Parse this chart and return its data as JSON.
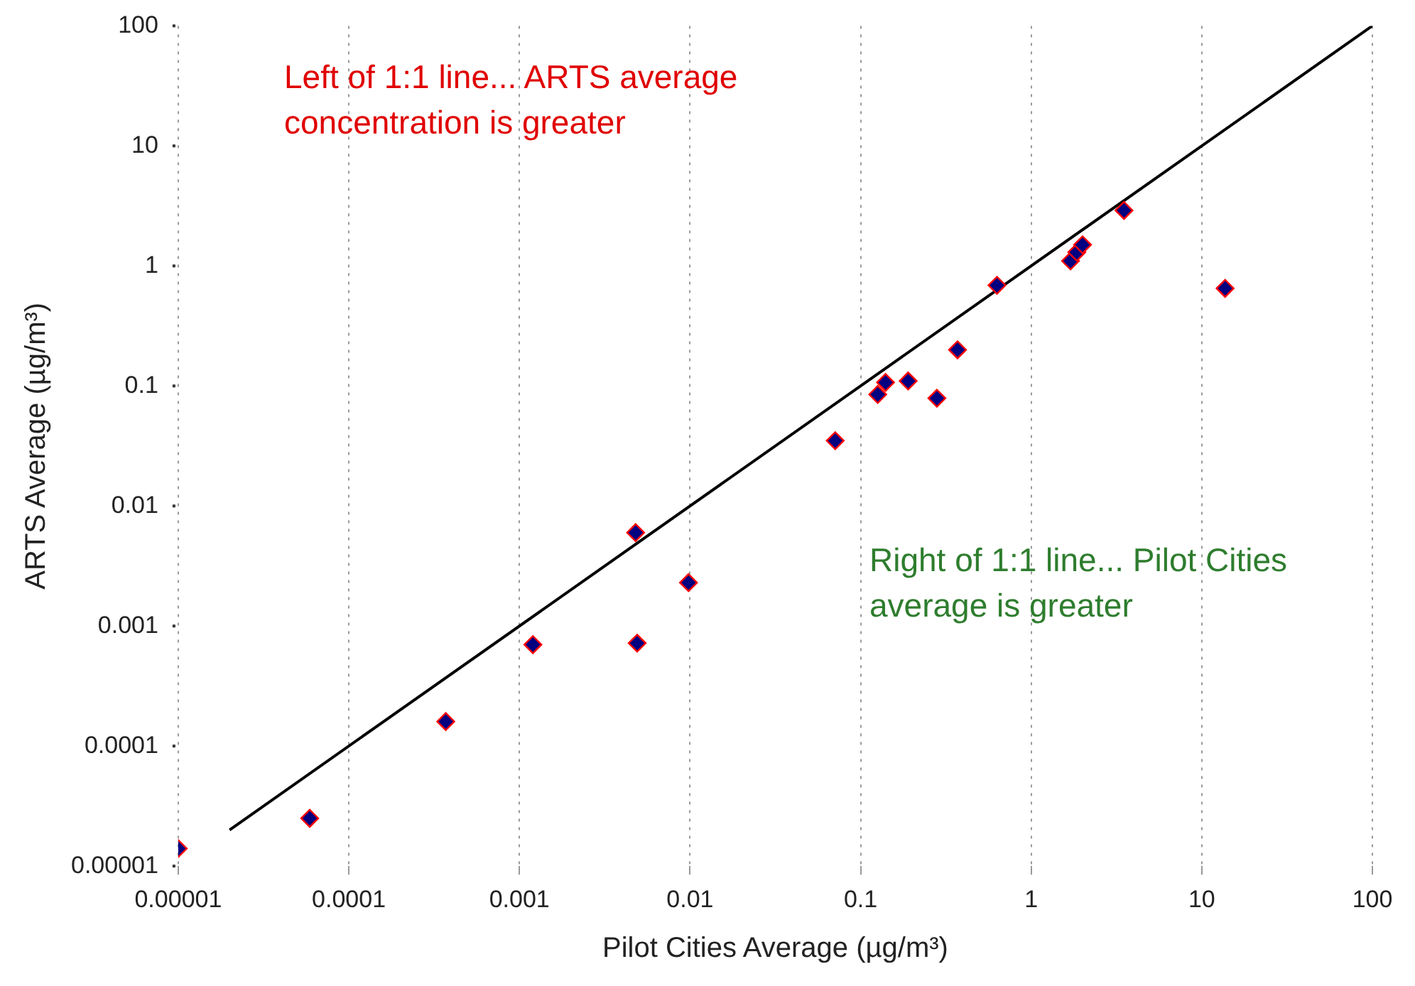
{
  "chart_data": {
    "type": "scatter",
    "xlabel": "Pilot Cities Average (µg/m³)",
    "ylabel": "ARTS Average (µg/m³)",
    "annotations": [
      "Left of 1:1 line... ARTS average concentration is greater",
      "Right of 1:1 line... Pilot Cities average is greater"
    ],
    "log": "xy",
    "xlim": [
      1e-05,
      100
    ],
    "ylim": [
      1e-05,
      100
    ],
    "xticks": [
      {
        "value": 1e-05,
        "label": "0.00001"
      },
      0.0001,
      0.001,
      0.01,
      0.1,
      1,
      10,
      100
    ],
    "yticks": [
      {
        "value": 1e-05,
        "label": "0.00001"
      },
      0.0001,
      0.001,
      0.01,
      0.1,
      1,
      10,
      100
    ],
    "grid": "x",
    "legend": false,
    "marker": "diamond",
    "series": [
      {
        "color": "#000080",
        "x": [
          1e-05,
          5.9e-05,
          0.00037,
          0.0012,
          0.0048,
          0.0049,
          0.0098,
          0.071,
          0.126,
          0.14,
          0.19,
          0.28,
          0.37,
          0.63,
          1.7,
          1.85,
          2.0,
          3.5,
          13.7
        ],
        "values": [
          1.4e-05,
          2.5e-05,
          0.00016,
          0.0007,
          0.006,
          0.00072,
          0.0023,
          0.035,
          0.085,
          0.107,
          0.11,
          0.079,
          0.2,
          0.69,
          1.1,
          1.3,
          1.5,
          2.9,
          0.65
        ]
      },
      {
        "type": "line",
        "color": "#000000",
        "marker": "none",
        "x": [
          2e-05,
          100
        ],
        "values": [
          2e-05,
          100
        ]
      }
    ]
  }
}
